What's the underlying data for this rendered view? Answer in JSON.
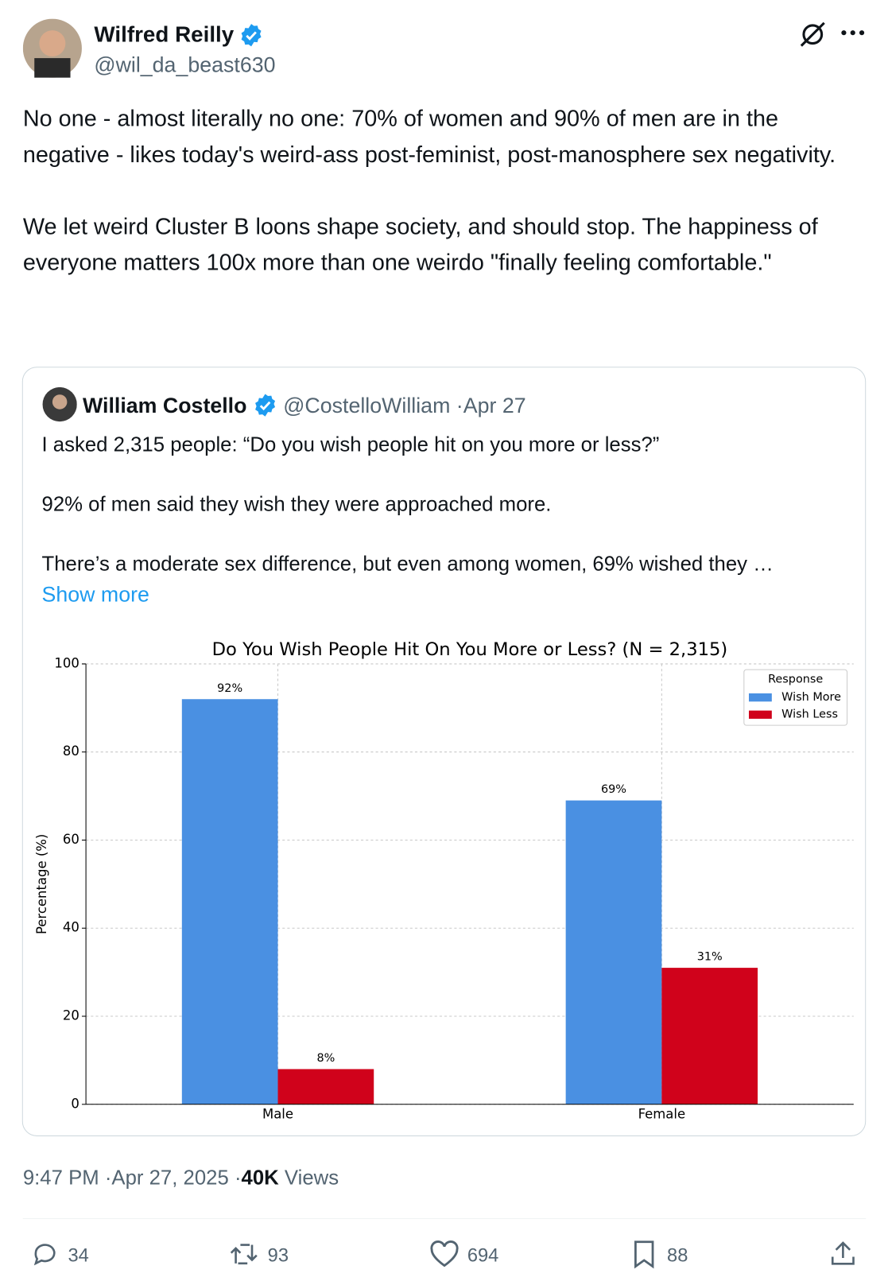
{
  "author": {
    "name": "Wilfred Reilly",
    "handle": "@wil_da_beast630"
  },
  "text": [
    "No one - almost literally no one: 70% of women and 90% of men are in the negative - likes today's weird-ass post-feminist, post-manosphere sex negativity.",
    "We let weird Cluster B loons shape society, and should stop. The happiness of everyone matters 100x more than one weirdo \"finally feeling comfortable.\""
  ],
  "quote": {
    "name": "William Costello",
    "handle": "@CostelloWilliam",
    "date": "Apr 27",
    "paragraphs": [
      "I asked 2,315 people: “Do you wish people hit on you more or less?”",
      "92% of men said they wish they were approached more.",
      "There’s a moderate sex difference, but even among women, 69% wished they …"
    ],
    "show_more": "Show more"
  },
  "chart_data": {
    "type": "bar",
    "title": "Do You Wish People Hit On You More or Less? (N = 2,315)",
    "y_label": "Percentage (%)",
    "categories": [
      "Male",
      "Female"
    ],
    "series": [
      {
        "name": "Wish More",
        "color": "#4a90e2",
        "values": [
          92,
          69
        ],
        "value_labels": [
          "92%",
          "69%"
        ]
      },
      {
        "name": "Wish Less",
        "color": "#d0021b",
        "values": [
          8,
          31
        ],
        "value_labels": [
          "8%",
          "31%"
        ]
      }
    ],
    "legend_title": "Response",
    "legend": "upper right",
    "ylim": [
      0,
      100
    ],
    "yticks": [
      0,
      20,
      40,
      60,
      80,
      100
    ],
    "grid": true
  },
  "footer": {
    "time": "9:47 PM",
    "date": "Apr 27, 2025",
    "views_count": "40K",
    "views_label": "Views"
  },
  "actions": {
    "replies": 34,
    "reposts": 93,
    "likes": 694,
    "bookmarks": 88
  }
}
